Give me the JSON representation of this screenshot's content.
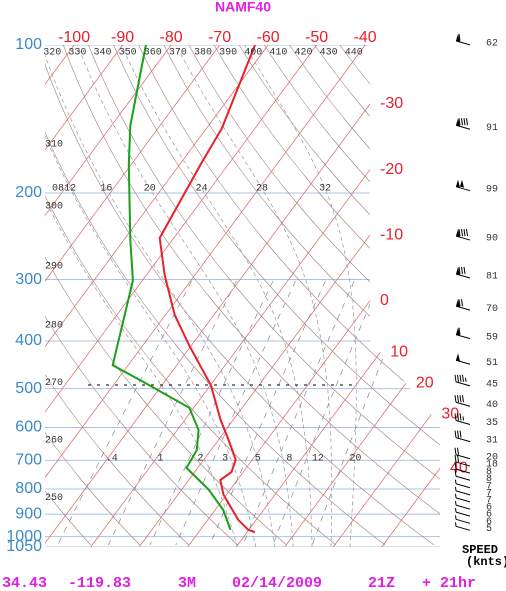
{
  "chart_data": {
    "type": "skewt",
    "title": "NAMF40",
    "log_y": true,
    "ylim": [
      100,
      1050
    ],
    "yticks": [
      100,
      200,
      300,
      400,
      500,
      600,
      700,
      800,
      900,
      1000,
      1050
    ],
    "xlim": [
      -106,
      -39
    ],
    "xticks": [
      -100,
      -90,
      -80,
      -70,
      -60,
      -50,
      -40,
      -30,
      -20,
      -10,
      0,
      10,
      20,
      30,
      40
    ],
    "theta_top": [
      320,
      330,
      340,
      350,
      360,
      370,
      380,
      390,
      400,
      410,
      420,
      430,
      440
    ],
    "theta_left": [
      310,
      300,
      290,
      280,
      270,
      260,
      250
    ],
    "moist_adiabats": [
      {
        "value": 8,
        "label": "08"
      },
      12,
      16,
      20,
      24,
      28,
      32
    ],
    "mixing_ratios": [
      {
        "value": 0.4,
        "label": ".4"
      },
      1,
      2,
      3,
      5,
      8,
      12,
      20
    ],
    "series": [
      {
        "color": "#e8202a",
        "values": [
          100,
          148,
          175,
          247,
          294,
          354,
          408,
          492,
          579,
          636,
          698,
          739,
          767,
          822,
          925,
          969,
          979
        ],
        "x": [
          -62.7,
          -56.8,
          -55.7,
          -52.9,
          -46.2,
          -38.1,
          -30.5,
          -19.9,
          -12.6,
          -7.9,
          -3.4,
          -2.4,
          -3.5,
          -0.6,
          6.3,
          9.9,
          11.6
        ]
      },
      {
        "color": "#1aa01a",
        "values": [
          100,
          146,
          175,
          249,
          301,
          354,
          448,
          492,
          547,
          607,
          667,
          725,
          803,
          883,
          969
        ],
        "x": [
          -85.2,
          -76.1,
          -70.5,
          -58.7,
          -52,
          -48.4,
          -43.2,
          -32.6,
          -20.9,
          -15.6,
          -12.9,
          -12.3,
          -4.4,
          1.7,
          6.2
        ]
      }
    ],
    "winds": {
      "pressure": [
        99,
        147,
        196,
        247,
        295,
        343,
        392,
        442,
        489,
        538,
        586,
        635,
        688,
        712,
        736,
        761,
        788,
        815,
        842,
        871,
        900,
        931,
        962
      ],
      "values": [
        62,
        91,
        99,
        90,
        81,
        70,
        59,
        51,
        45,
        40,
        35,
        31,
        20,
        18,
        8,
        8,
        7,
        7,
        7,
        6,
        6,
        6,
        5
      ],
      "label": "SPEED",
      "unit": "(knts)"
    },
    "footer": [
      "34.43",
      "-119.83",
      "3M",
      "02/14/2009",
      "21Z",
      "+ 21hr"
    ]
  }
}
